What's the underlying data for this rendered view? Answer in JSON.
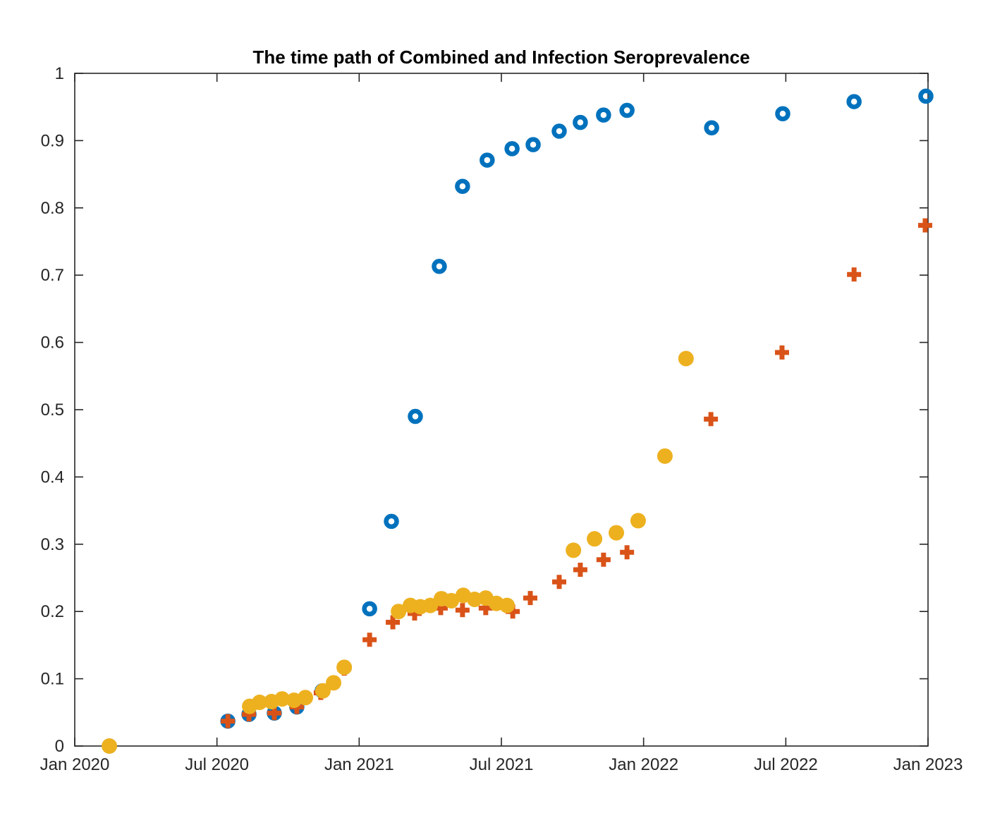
{
  "chart_data": {
    "type": "scatter",
    "title": "The time path of Combined and Infection Seroprevalence",
    "xlabel": "",
    "ylabel": "",
    "xlim": [
      0,
      36
    ],
    "ylim": [
      0,
      1
    ],
    "grid": false,
    "legend": "none",
    "box": true,
    "x_unit": "months since Jan 2020",
    "x_ticks": [
      0,
      6,
      12,
      18,
      24,
      30,
      36
    ],
    "x_tick_labels": [
      "Jan 2020",
      "Jul 2020",
      "Jan 2021",
      "Jul 2021",
      "Jan 2022",
      "Jul 2022",
      "Jan 2023"
    ],
    "y_ticks": [
      0,
      0.1,
      0.2,
      0.3,
      0.4,
      0.5,
      0.6,
      0.7,
      0.8,
      0.9,
      1
    ],
    "y_tick_labels": [
      "0",
      "0.1",
      "0.2",
      "0.3",
      "0.4",
      "0.5",
      "0.6",
      "0.7",
      "0.8",
      "0.9",
      "1"
    ],
    "axis_color": "#262626",
    "series": [
      {
        "name": "combined-seroprevalence-blue-open-circles",
        "marker": "open-circle",
        "color": "#0072BD",
        "points": [
          [
            1.46,
            0.0
          ],
          [
            6.46,
            0.037
          ],
          [
            7.35,
            0.047
          ],
          [
            8.42,
            0.049
          ],
          [
            9.37,
            0.058
          ],
          [
            10.44,
            0.082
          ],
          [
            11.37,
            0.117
          ],
          [
            12.44,
            0.204
          ],
          [
            13.36,
            0.334
          ],
          [
            14.37,
            0.49
          ],
          [
            15.38,
            0.713
          ],
          [
            16.36,
            0.832
          ],
          [
            17.4,
            0.871
          ],
          [
            18.45,
            0.888
          ],
          [
            19.34,
            0.894
          ],
          [
            20.44,
            0.914
          ],
          [
            21.33,
            0.927
          ],
          [
            22.31,
            0.938
          ],
          [
            23.3,
            0.945
          ],
          [
            26.87,
            0.919
          ],
          [
            29.87,
            0.94
          ],
          [
            32.88,
            0.958
          ],
          [
            35.91,
            0.966
          ]
        ]
      },
      {
        "name": "infection-seroprevalence-orange-plus",
        "marker": "plus",
        "color": "#D95319",
        "points": [
          [
            1.46,
            0.0
          ],
          [
            6.46,
            0.037
          ],
          [
            7.35,
            0.047
          ],
          [
            8.42,
            0.049
          ],
          [
            9.37,
            0.058
          ],
          [
            10.38,
            0.079
          ],
          [
            11.37,
            0.115
          ],
          [
            12.44,
            0.158
          ],
          [
            13.42,
            0.184
          ],
          [
            14.34,
            0.197
          ],
          [
            15.44,
            0.205
          ],
          [
            16.36,
            0.202
          ],
          [
            17.34,
            0.205
          ],
          [
            18.48,
            0.2
          ],
          [
            19.22,
            0.22
          ],
          [
            20.44,
            0.244
          ],
          [
            21.33,
            0.262
          ],
          [
            22.31,
            0.277
          ],
          [
            23.3,
            0.288
          ],
          [
            26.84,
            0.486
          ],
          [
            29.84,
            0.585
          ],
          [
            32.88,
            0.701
          ],
          [
            35.88,
            0.774
          ]
        ]
      },
      {
        "name": "yellow-filled-circles",
        "marker": "filled-circle",
        "color": "#EDB120",
        "points": [
          [
            1.46,
            0.0
          ],
          [
            7.38,
            0.059
          ],
          [
            7.8,
            0.065
          ],
          [
            8.3,
            0.066
          ],
          [
            8.75,
            0.07
          ],
          [
            9.25,
            0.068
          ],
          [
            9.73,
            0.072
          ],
          [
            10.47,
            0.082
          ],
          [
            10.92,
            0.094
          ],
          [
            11.37,
            0.117
          ],
          [
            13.66,
            0.2
          ],
          [
            14.16,
            0.209
          ],
          [
            14.58,
            0.207
          ],
          [
            15.0,
            0.209
          ],
          [
            15.47,
            0.219
          ],
          [
            15.89,
            0.216
          ],
          [
            16.39,
            0.224
          ],
          [
            16.87,
            0.218
          ],
          [
            17.34,
            0.22
          ],
          [
            17.79,
            0.212
          ],
          [
            18.24,
            0.209
          ],
          [
            21.04,
            0.291
          ],
          [
            21.93,
            0.308
          ],
          [
            22.85,
            0.317
          ],
          [
            23.77,
            0.335
          ],
          [
            24.9,
            0.431
          ],
          [
            25.79,
            0.576
          ]
        ]
      }
    ]
  }
}
